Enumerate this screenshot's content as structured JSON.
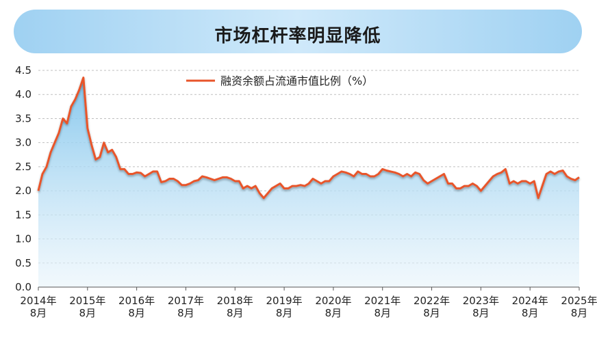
{
  "title": "市场杠杆率明显降低",
  "chart_data": {
    "type": "area",
    "title": "市场杠杆率明显降低",
    "xlabel": "",
    "ylabel": "",
    "ylim": [
      0,
      4.5
    ],
    "yticks": [
      "0.0",
      "0.5",
      "1.0",
      "1.5",
      "2.0",
      "2.5",
      "3.0",
      "3.5",
      "4.0",
      "4.5"
    ],
    "xtick_labels": [
      [
        "2014年",
        "8月"
      ],
      [
        "2015年",
        "8月"
      ],
      [
        "2016年",
        "8月"
      ],
      [
        "2017年",
        "8月"
      ],
      [
        "2018年",
        "8月"
      ],
      [
        "2019年",
        "8月"
      ],
      [
        "2020年",
        "8月"
      ],
      [
        "2021年",
        "8月"
      ],
      [
        "2022年",
        "8月"
      ],
      [
        "2023年",
        "8月"
      ],
      [
        "2024年",
        "8月"
      ],
      [
        "2025年",
        "8月"
      ]
    ],
    "grid": true,
    "legend_position": "top-center",
    "colors": {
      "line": "#e8542a",
      "fill_top": "#7fc4ec",
      "fill_bottom": "#e8f4fb",
      "grid": "#bfbfbf"
    },
    "series": [
      {
        "name": "融资余额占流通市值比例（%）",
        "x": [
          "2014-08",
          "2014-09",
          "2014-10",
          "2014-11",
          "2014-12",
          "2015-01",
          "2015-02",
          "2015-03",
          "2015-04",
          "2015-05",
          "2015-06",
          "2015-07",
          "2015-08",
          "2015-09",
          "2015-10",
          "2015-11",
          "2015-12",
          "2016-01",
          "2016-02",
          "2016-03",
          "2016-04",
          "2016-05",
          "2016-06",
          "2016-07",
          "2016-08",
          "2016-09",
          "2016-10",
          "2016-11",
          "2016-12",
          "2017-01",
          "2017-02",
          "2017-03",
          "2017-04",
          "2017-05",
          "2017-06",
          "2017-07",
          "2017-08",
          "2017-09",
          "2017-10",
          "2017-11",
          "2017-12",
          "2018-01",
          "2018-02",
          "2018-03",
          "2018-04",
          "2018-05",
          "2018-06",
          "2018-07",
          "2018-08",
          "2018-09",
          "2018-10",
          "2018-11",
          "2018-12",
          "2019-01",
          "2019-02",
          "2019-03",
          "2019-04",
          "2019-05",
          "2019-06",
          "2019-07",
          "2019-08",
          "2019-09",
          "2019-10",
          "2019-11",
          "2019-12",
          "2020-01",
          "2020-02",
          "2020-03",
          "2020-04",
          "2020-05",
          "2020-06",
          "2020-07",
          "2020-08",
          "2020-09",
          "2020-10",
          "2020-11",
          "2020-12",
          "2021-01",
          "2021-02",
          "2021-03",
          "2021-04",
          "2021-05",
          "2021-06",
          "2021-07",
          "2021-08",
          "2021-09",
          "2021-10",
          "2021-11",
          "2021-12",
          "2022-01",
          "2022-02",
          "2022-03",
          "2022-04",
          "2022-05",
          "2022-06",
          "2022-07",
          "2022-08",
          "2022-09",
          "2022-10",
          "2022-11",
          "2022-12",
          "2023-01",
          "2023-02",
          "2023-03",
          "2023-04",
          "2023-05",
          "2023-06",
          "2023-07",
          "2023-08",
          "2023-09",
          "2023-10",
          "2023-11",
          "2023-12",
          "2024-01",
          "2024-02",
          "2024-03",
          "2024-04",
          "2024-05",
          "2024-06",
          "2024-07",
          "2024-08",
          "2024-09",
          "2024-10",
          "2024-11",
          "2024-12",
          "2025-01",
          "2025-02",
          "2025-03",
          "2025-04",
          "2025-05",
          "2025-06",
          "2025-07",
          "2025-08"
        ],
        "values": [
          2.0,
          2.35,
          2.5,
          2.8,
          3.0,
          3.2,
          3.5,
          3.4,
          3.75,
          3.9,
          4.1,
          4.35,
          3.3,
          2.95,
          2.65,
          2.7,
          3.0,
          2.8,
          2.85,
          2.7,
          2.45,
          2.45,
          2.35,
          2.35,
          2.38,
          2.37,
          2.3,
          2.35,
          2.4,
          2.4,
          2.18,
          2.2,
          2.25,
          2.25,
          2.2,
          2.12,
          2.12,
          2.15,
          2.2,
          2.22,
          2.3,
          2.28,
          2.25,
          2.22,
          2.25,
          2.28,
          2.28,
          2.25,
          2.2,
          2.2,
          2.05,
          2.1,
          2.05,
          2.1,
          1.95,
          1.85,
          1.95,
          2.05,
          2.1,
          2.15,
          2.05,
          2.05,
          2.1,
          2.1,
          2.12,
          2.1,
          2.15,
          2.25,
          2.2,
          2.15,
          2.2,
          2.2,
          2.3,
          2.35,
          2.4,
          2.38,
          2.35,
          2.3,
          2.4,
          2.35,
          2.35,
          2.3,
          2.3,
          2.35,
          2.45,
          2.42,
          2.4,
          2.38,
          2.35,
          2.3,
          2.35,
          2.3,
          2.38,
          2.35,
          2.22,
          2.15,
          2.2,
          2.25,
          2.3,
          2.35,
          2.15,
          2.15,
          2.05,
          2.05,
          2.1,
          2.1,
          2.15,
          2.1,
          2.0,
          2.1,
          2.2,
          2.3,
          2.35,
          2.38,
          2.45,
          2.15,
          2.2,
          2.15,
          2.2,
          2.2,
          2.15,
          2.2,
          1.85,
          2.1,
          2.35,
          2.4,
          2.35,
          2.4,
          2.42,
          2.3,
          2.25,
          2.22,
          2.28
        ]
      }
    ]
  }
}
